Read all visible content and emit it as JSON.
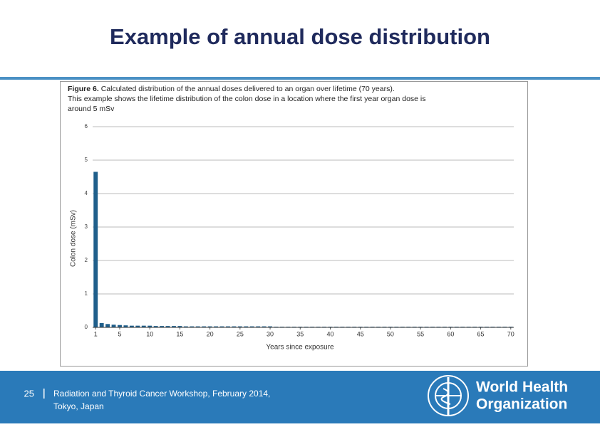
{
  "slide": {
    "title": "Example of annual dose distribution",
    "page_number": "25",
    "footer_lines": [
      "Radiation and Thyroid Cancer Workshop, February 2014,",
      "Tokyo, Japan"
    ],
    "logo_lines": [
      "World Health",
      "Organization"
    ]
  },
  "chart_data": {
    "type": "bar",
    "caption_label": "Figure 6.",
    "caption_lines": [
      "Calculated distribution of the annual doses delivered to an organ over lifetime (70 years).",
      "This example shows the lifetime distribution of the colon dose in a location where the first year organ dose is",
      "around 5 mSv"
    ],
    "y_label": "Colon dose (mSv)",
    "x_label": "Years since exposure",
    "x": [
      1,
      2,
      3,
      4,
      5,
      6,
      7,
      8,
      9,
      10,
      11,
      12,
      13,
      14,
      15,
      16,
      17,
      18,
      19,
      20,
      21,
      22,
      23,
      24,
      25,
      26,
      27,
      28,
      29,
      30,
      31,
      32,
      33,
      34,
      35,
      36,
      37,
      38,
      39,
      40,
      41,
      42,
      43,
      44,
      45,
      46,
      47,
      48,
      49,
      50,
      51,
      52,
      53,
      54,
      55,
      56,
      57,
      58,
      59,
      60,
      61,
      62,
      63,
      64,
      65,
      66,
      67,
      68,
      69,
      70
    ],
    "values": [
      4.65,
      0.13,
      0.1,
      0.08,
      0.07,
      0.06,
      0.05,
      0.05,
      0.05,
      0.05,
      0.04,
      0.04,
      0.04,
      0.04,
      0.04,
      0.03,
      0.03,
      0.03,
      0.03,
      0.03,
      0.03,
      0.03,
      0.03,
      0.03,
      0.03,
      0.03,
      0.03,
      0.03,
      0.03,
      0.03,
      0.02,
      0.02,
      0.02,
      0.02,
      0.02,
      0.02,
      0.02,
      0.02,
      0.02,
      0.02,
      0.02,
      0.02,
      0.02,
      0.02,
      0.02,
      0.02,
      0.02,
      0.02,
      0.02,
      0.02,
      0.02,
      0.02,
      0.02,
      0.02,
      0.02,
      0.02,
      0.02,
      0.02,
      0.02,
      0.02,
      0.02,
      0.02,
      0.02,
      0.02,
      0.02,
      0.02,
      0.02,
      0.02,
      0.02,
      0.02
    ],
    "color": "#1f5f8b",
    "xlim": [
      0.5,
      70.5
    ],
    "xticks": [
      1,
      5,
      10,
      15,
      20,
      25,
      30,
      35,
      40,
      45,
      50,
      55,
      60,
      65,
      70
    ],
    "ylim": [
      0,
      6
    ],
    "yticks": [
      0,
      1,
      2,
      3,
      4,
      5,
      6
    ],
    "grid": true
  }
}
